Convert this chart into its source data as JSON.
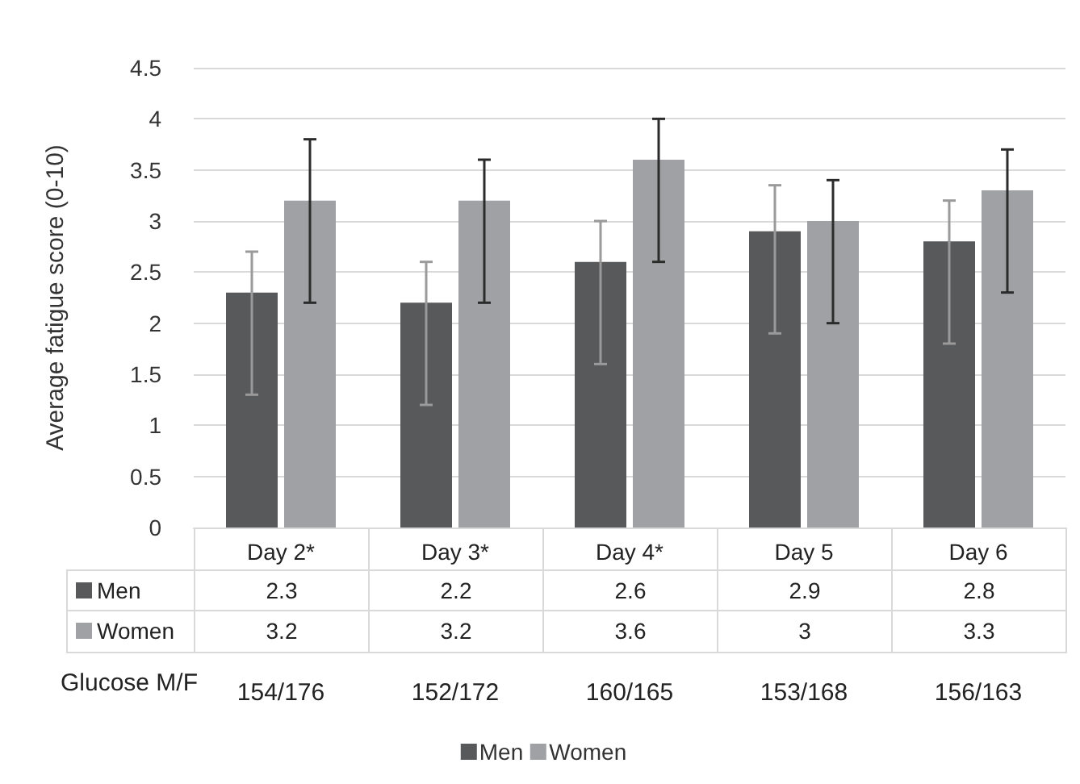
{
  "chart_data": {
    "type": "bar",
    "ylabel": "Average fatigue score (0-10)",
    "categories": [
      "Day 2*",
      "Day 3*",
      "Day 4*",
      "Day 5",
      "Day 6"
    ],
    "series": [
      {
        "name": "Men",
        "color": "#58595b",
        "values": [
          2.3,
          2.2,
          2.6,
          2.9,
          2.8
        ],
        "errors": [
          [
            1.3,
            2.7
          ],
          [
            1.2,
            2.6
          ],
          [
            1.6,
            3.0
          ],
          [
            1.9,
            3.35
          ],
          [
            1.8,
            3.2
          ]
        ]
      },
      {
        "name": "Women",
        "color": "#a0a1a4",
        "values": [
          3.2,
          3.2,
          3.6,
          3,
          3.3
        ],
        "errors": [
          [
            2.2,
            3.8
          ],
          [
            2.2,
            3.6
          ],
          [
            2.6,
            4.0
          ],
          [
            2.0,
            3.4
          ],
          [
            2.3,
            3.7
          ]
        ]
      }
    ],
    "ylim": [
      0,
      4.5
    ],
    "yticks": [
      0,
      0.5,
      1,
      1.5,
      2,
      2.5,
      3,
      3.5,
      4,
      4.5
    ],
    "grid": "y",
    "legend": "bottom",
    "data_labels": true,
    "annotations": [
      "Glucose M/F",
      "154/176",
      "152/172",
      "160/165",
      "153/168",
      "156/163"
    ]
  }
}
